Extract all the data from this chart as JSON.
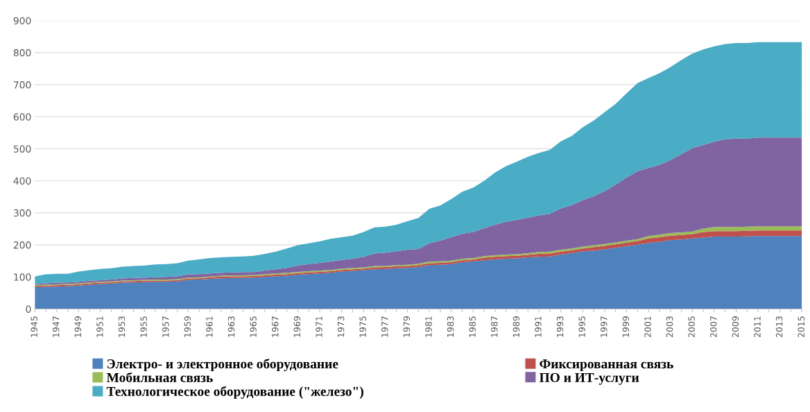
{
  "chart_data": {
    "type": "area",
    "stacked": true,
    "categories": [
      "1945",
      null,
      "1947",
      null,
      "1949",
      null,
      "1951",
      null,
      "1953",
      null,
      "1955",
      null,
      "1957",
      null,
      "1959",
      null,
      "1961",
      null,
      "1963",
      null,
      "1965",
      null,
      "1967",
      null,
      "1969",
      null,
      "1971",
      null,
      "1973",
      null,
      "1975",
      null,
      "1977",
      null,
      "1979",
      null,
      "1981",
      null,
      "1983",
      null,
      "1985",
      null,
      "1987",
      null,
      "1989",
      null,
      "1991",
      null,
      "1993",
      null,
      "1995",
      null,
      "1997",
      null,
      "1999",
      null,
      "2001",
      null,
      "2003",
      null,
      "2005",
      null,
      "2007",
      null,
      "2009",
      null,
      "2011",
      null,
      "2013",
      null,
      "2015"
    ],
    "series": [
      {
        "name": "Электро- и электронное оборудование",
        "color": "#4f81bd",
        "values": [
          68,
          69,
          70,
          71,
          73,
          76,
          78,
          79,
          82,
          83,
          84,
          85,
          85,
          86,
          91,
          92,
          94,
          96,
          97,
          97,
          98,
          100,
          102,
          104,
          107,
          109,
          111,
          113,
          117,
          119,
          121,
          124,
          125,
          127,
          128,
          131,
          137,
          138,
          140,
          146,
          148,
          152,
          155,
          157,
          158,
          161,
          163,
          164,
          170,
          174,
          180,
          182,
          186,
          191,
          196,
          201,
          206,
          210,
          215,
          217,
          220,
          223,
          226,
          226,
          226,
          227,
          228,
          228,
          228,
          228,
          228
        ]
      },
      {
        "name": "Фиксированная связь",
        "color": "#c0504d",
        "values": [
          4,
          4,
          4,
          4,
          4,
          4,
          4,
          4,
          4,
          4,
          4,
          4,
          4,
          4,
          4,
          4,
          5,
          5,
          5,
          5,
          5,
          5,
          5,
          5,
          5,
          5,
          5,
          5,
          5,
          5,
          5,
          6,
          6,
          6,
          6,
          6,
          6,
          6,
          6,
          6,
          6,
          8,
          8,
          8,
          8,
          8,
          9,
          9,
          9,
          9,
          9,
          11,
          11,
          11,
          11,
          11,
          14,
          14,
          14,
          14,
          14,
          17,
          17,
          17,
          17,
          17,
          17,
          17,
          17,
          17,
          17
        ]
      },
      {
        "name": "Мобильная связь",
        "color": "#9bbb59",
        "values": [
          3,
          3,
          3,
          3,
          3,
          3,
          3,
          3,
          3,
          3,
          3,
          3,
          3,
          3,
          3,
          3,
          3,
          3,
          3,
          3,
          3,
          4,
          4,
          4,
          4,
          4,
          4,
          4,
          4,
          4,
          4,
          4,
          4,
          4,
          4,
          4,
          5,
          5,
          5,
          5,
          5,
          5,
          5,
          5,
          5,
          5,
          6,
          6,
          6,
          6,
          6,
          6,
          6,
          6,
          6,
          6,
          8,
          8,
          8,
          8,
          8,
          11,
          13,
          13,
          13,
          13,
          13,
          13,
          13,
          13,
          13
        ]
      },
      {
        "name": "ПО и ИТ-услуги",
        "color": "#8064a2",
        "values": [
          3,
          4,
          5,
          5,
          5,
          5,
          5,
          6,
          6,
          7,
          7,
          7,
          8,
          9,
          10,
          10,
          9,
          9,
          9,
          10,
          9,
          11,
          13,
          15,
          20,
          22,
          24,
          26,
          27,
          29,
          33,
          39,
          41,
          43,
          47,
          46,
          57,
          64,
          73,
          78,
          81,
          87,
          95,
          102,
          107,
          111,
          114,
          118,
          129,
          135,
          145,
          153,
          165,
          180,
          197,
          212,
          212,
          218,
          228,
          244,
          260,
          261,
          266,
          274,
          276,
          275,
          277,
          277,
          277,
          277,
          277
        ]
      },
      {
        "name": "Технологическое оборудование (\"железо\")",
        "color": "#4bacc6",
        "values": [
          24,
          28,
          28,
          27,
          32,
          33,
          35,
          35,
          37,
          37,
          38,
          40,
          40,
          41,
          43,
          46,
          48,
          48,
          49,
          49,
          51,
          52,
          55,
          61,
          63,
          65,
          67,
          71,
          71,
          72,
          77,
          82,
          81,
          83,
          89,
          97,
          108,
          110,
          119,
          131,
          139,
          148,
          163,
          174,
          182,
          190,
          195,
          200,
          209,
          216,
          227,
          236,
          246,
          252,
          263,
          275,
          281,
          286,
          290,
          294,
          295,
          298,
          298,
          297,
          298,
          298,
          298,
          298,
          298,
          298,
          298
        ]
      }
    ],
    "ylim": [
      0,
      900
    ],
    "yticks": [
      0,
      100,
      200,
      300,
      400,
      500,
      600,
      700,
      800,
      900
    ],
    "grid": "y",
    "legend": "bottom"
  }
}
